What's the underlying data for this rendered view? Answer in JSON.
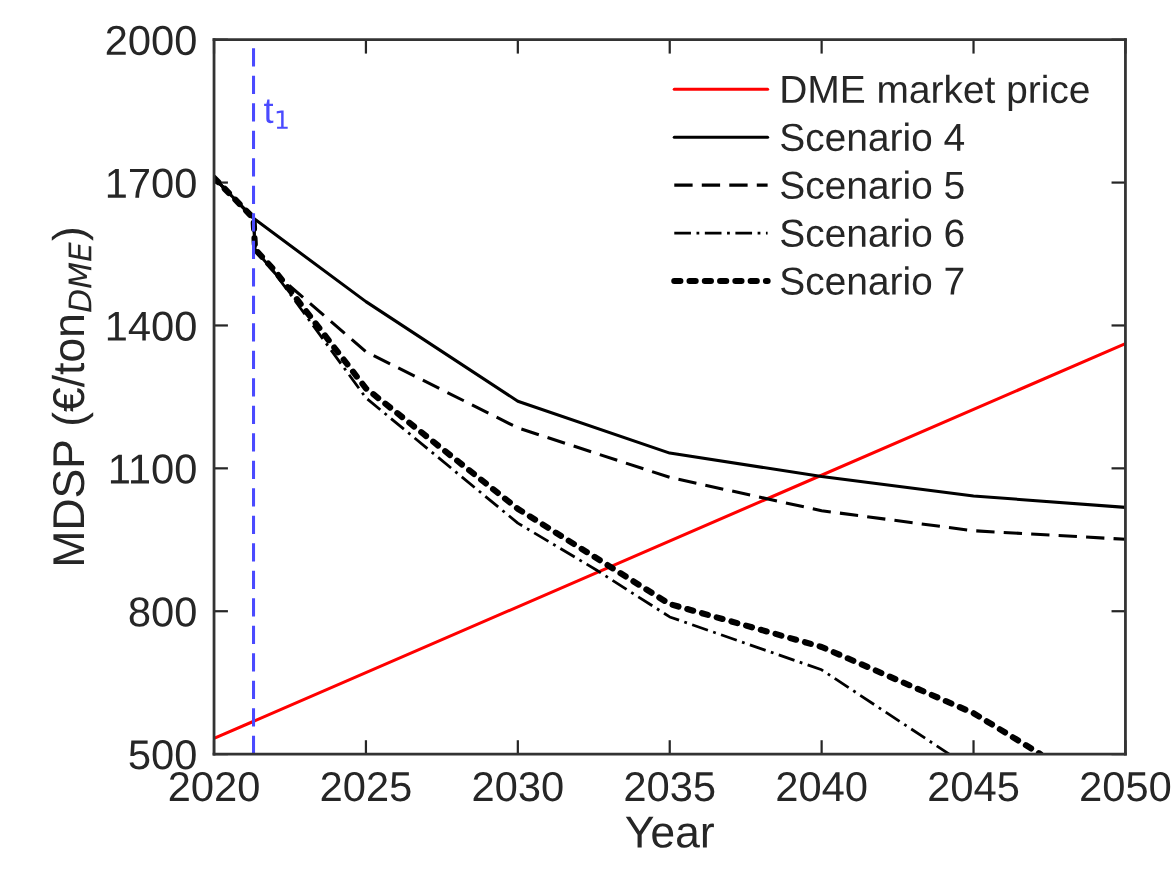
{
  "chart_data": {
    "type": "line",
    "xlabel": "Year",
    "ylabel": "MDSP (€/ton$_{DME}$)",
    "xlim": [
      2020,
      2050
    ],
    "xticks": [
      2020,
      2025,
      2030,
      2035,
      2040,
      2045,
      2050
    ],
    "ylim": [
      500,
      2000
    ],
    "yticks": [
      500,
      800,
      1100,
      1400,
      1700,
      2000
    ],
    "grid": false,
    "legend": "top right",
    "ref_lines": [
      {
        "axis": "x",
        "value": 2021.3,
        "label": "t$_{1}$",
        "color": "#4a4aff",
        "line_style": "dashed"
      }
    ],
    "series": [
      {
        "name": "DME market price",
        "color": "#ff0000",
        "line_style": "solid",
        "x": [
          2020,
          2050
        ],
        "values": [
          533,
          1362
        ]
      },
      {
        "name": "Scenario 4",
        "color": "#000000",
        "line_style": "solid",
        "x": [
          2020,
          2021.3,
          2025,
          2030,
          2035,
          2040,
          2045,
          2050
        ],
        "values": [
          1710,
          1625,
          1450,
          1241,
          1132,
          1083,
          1042,
          1018
        ]
      },
      {
        "name": "Scenario 5",
        "color": "#000000",
        "line_style": "dashed",
        "x": [
          2020,
          2021.3,
          2021.35,
          2022,
          2025,
          2030,
          2035,
          2040,
          2045,
          2050
        ],
        "values": [
          1710,
          1625,
          1560,
          1510,
          1345,
          1185,
          1081,
          1011,
          969,
          951
        ]
      },
      {
        "name": "Scenario 6",
        "color": "#000000",
        "line_style": "dashdot",
        "x": [
          2020,
          2021.3,
          2021.35,
          2022,
          2025,
          2030,
          2032.6,
          2035,
          2040,
          2044.2
        ],
        "values": [
          1710,
          1625,
          1560,
          1510,
          1248,
          985,
          886,
          788,
          677,
          500
        ]
      },
      {
        "name": "Scenario 7",
        "color": "#000000",
        "line_style": "dotted",
        "x": [
          2020,
          2021.3,
          2021.35,
          2022,
          2025,
          2030,
          2035,
          2040,
          2045,
          2047.2
        ],
        "values": [
          1710,
          1625,
          1560,
          1515,
          1268,
          1015,
          815,
          725,
          586,
          500
        ]
      }
    ]
  }
}
